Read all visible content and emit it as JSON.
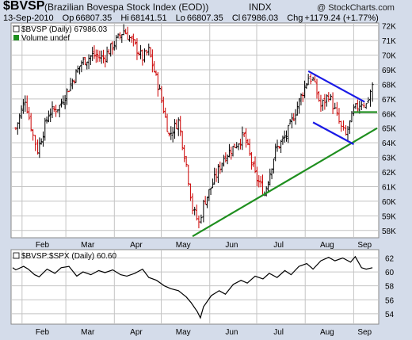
{
  "header": {
    "symbol": "$BVSP",
    "full_name": "(Brazilian Bovespa Stock Index (EOD))",
    "exchange": "INDX",
    "watermark": "@ StockCharts.com",
    "date": "13-Sep-2010",
    "open_label": "Op",
    "open": "66807.35",
    "high_label": "Hi",
    "high": "68141.51",
    "low_label": "Lo",
    "low": "66807.35",
    "close_label": "Cl",
    "close": "67986.03",
    "change_label": "Chg",
    "change": "+1179.24 (+1.77%)"
  },
  "colors": {
    "up": "#000000",
    "down": "#cc0000",
    "trend_green": "#1f8f1f",
    "channel_blue": "#1a1ae6",
    "grid": "#c4c4c4",
    "background": "#d4dcea",
    "panel": "#ffffff"
  },
  "chart_data": [
    {
      "type": "ohlc",
      "legend": [
        "$BVSP (Daily) 67986.03",
        "Volume undef"
      ],
      "y_ticks": [
        "58K",
        "59K",
        "60K",
        "61K",
        "62K",
        "63K",
        "64K",
        "65K",
        "66K",
        "67K",
        "68K",
        "69K",
        "70K",
        "71K",
        "72K"
      ],
      "x_ticks": [
        "Feb",
        "Mar",
        "Apr",
        "May",
        "Jun",
        "Jul",
        "Aug",
        "Sep"
      ],
      "ylim": [
        57500,
        72200
      ],
      "grid": true,
      "closes_approx": [
        [
          "2010-01-28",
          65000
        ],
        [
          "2010-02-03",
          67000
        ],
        [
          "2010-02-08",
          64500
        ],
        [
          "2010-02-11",
          63500
        ],
        [
          "2010-02-18",
          66000
        ],
        [
          "2010-02-25",
          66500
        ],
        [
          "2010-03-04",
          68000
        ],
        [
          "2010-03-11",
          69500
        ],
        [
          "2010-03-18",
          70000
        ],
        [
          "2010-03-25",
          69800
        ],
        [
          "2010-04-01",
          70800
        ],
        [
          "2010-04-07",
          71700
        ],
        [
          "2010-04-12",
          71000
        ],
        [
          "2010-04-19",
          69800
        ],
        [
          "2010-04-23",
          70300
        ],
        [
          "2010-04-30",
          67500
        ],
        [
          "2010-05-06",
          64500
        ],
        [
          "2010-05-12",
          65500
        ],
        [
          "2010-05-17",
          62500
        ],
        [
          "2010-05-21",
          59500
        ],
        [
          "2010-05-25",
          58500
        ],
        [
          "2010-05-28",
          59800
        ],
        [
          "2010-06-04",
          61500
        ],
        [
          "2010-06-10",
          63000
        ],
        [
          "2010-06-17",
          63800
        ],
        [
          "2010-06-23",
          64500
        ],
        [
          "2010-06-30",
          61800
        ],
        [
          "2010-07-06",
          60500
        ],
        [
          "2010-07-13",
          63500
        ],
        [
          "2010-07-20",
          64500
        ],
        [
          "2010-07-27",
          66500
        ],
        [
          "2010-08-03",
          68500
        ],
        [
          "2010-08-06",
          68300
        ],
        [
          "2010-08-11",
          66500
        ],
        [
          "2010-08-16",
          67300
        ],
        [
          "2010-08-20",
          66200
        ],
        [
          "2010-08-24",
          65000
        ],
        [
          "2010-08-27",
          64500
        ],
        [
          "2010-09-01",
          66200
        ],
        [
          "2010-09-06",
          66800
        ],
        [
          "2010-09-09",
          66600
        ],
        [
          "2010-09-13",
          67986
        ]
      ],
      "trendlines": [
        {
          "name": "rising-support",
          "color": "green",
          "from": [
            "2010-05-21",
            57600
          ],
          "to": [
            "2010-09-16",
            65000
          ]
        },
        {
          "name": "horizontal-support",
          "color": "green",
          "from": [
            "2010-09-01",
            66100
          ],
          "to": [
            "2010-09-16",
            66100
          ]
        },
        {
          "name": "channel-upper",
          "color": "blue",
          "from": [
            "2010-08-03",
            68900
          ],
          "to": [
            "2010-09-08",
            66800
          ]
        },
        {
          "name": "channel-lower",
          "color": "blue",
          "from": [
            "2010-08-06",
            65400
          ],
          "to": [
            "2010-09-01",
            63900
          ]
        }
      ]
    },
    {
      "type": "line",
      "legend": "$BVSP:$SPX (Daily) 60.60",
      "y_ticks": [
        "54",
        "56",
        "58",
        "60",
        "62"
      ],
      "x_ticks": [
        "Feb",
        "Mar",
        "Apr",
        "May",
        "Jun",
        "Jul",
        "Aug",
        "Sep"
      ],
      "ylim": [
        52.5,
        63.2
      ],
      "grid": true,
      "series": [
        {
          "values_approx": [
            [
              "2010-01-26",
              60.6
            ],
            [
              "2010-01-28",
              60.3
            ],
            [
              "2010-02-02",
              60.8
            ],
            [
              "2010-02-05",
              60.4
            ],
            [
              "2010-02-09",
              59.6
            ],
            [
              "2010-02-12",
              59.3
            ],
            [
              "2010-02-17",
              60.4
            ],
            [
              "2010-02-22",
              59.8
            ],
            [
              "2010-02-26",
              60.6
            ],
            [
              "2010-03-03",
              60.8
            ],
            [
              "2010-03-08",
              59.4
            ],
            [
              "2010-03-12",
              60.0
            ],
            [
              "2010-03-17",
              59.6
            ],
            [
              "2010-03-22",
              60.2
            ],
            [
              "2010-03-26",
              59.9
            ],
            [
              "2010-03-31",
              60.3
            ],
            [
              "2010-04-05",
              59.6
            ],
            [
              "2010-04-09",
              59.4
            ],
            [
              "2010-04-14",
              59.8
            ],
            [
              "2010-04-19",
              60.4
            ],
            [
              "2010-04-23",
              59.2
            ],
            [
              "2010-04-28",
              58.8
            ],
            [
              "2010-05-03",
              58.0
            ],
            [
              "2010-05-07",
              57.6
            ],
            [
              "2010-05-12",
              57.3
            ],
            [
              "2010-05-17",
              56.4
            ],
            [
              "2010-05-20",
              55.6
            ],
            [
              "2010-05-24",
              54.3
            ],
            [
              "2010-05-26",
              53.4
            ],
            [
              "2010-05-28",
              55.0
            ],
            [
              "2010-06-02",
              56.6
            ],
            [
              "2010-06-07",
              57.3
            ],
            [
              "2010-06-11",
              56.8
            ],
            [
              "2010-06-16",
              58.2
            ],
            [
              "2010-06-21",
              58.8
            ],
            [
              "2010-06-25",
              58.4
            ],
            [
              "2010-06-30",
              59.4
            ],
            [
              "2010-07-05",
              59.0
            ],
            [
              "2010-07-09",
              59.8
            ],
            [
              "2010-07-14",
              59.2
            ],
            [
              "2010-07-19",
              60.2
            ],
            [
              "2010-07-23",
              59.6
            ],
            [
              "2010-07-28",
              60.8
            ],
            [
              "2010-08-02",
              61.2
            ],
            [
              "2010-08-06",
              60.4
            ],
            [
              "2010-08-11",
              61.6
            ],
            [
              "2010-08-16",
              62.1
            ],
            [
              "2010-08-20",
              61.6
            ],
            [
              "2010-08-25",
              62.0
            ],
            [
              "2010-08-30",
              61.4
            ],
            [
              "2010-09-02",
              62.2
            ],
            [
              "2010-09-06",
              60.6
            ],
            [
              "2010-09-09",
              60.4
            ],
            [
              "2010-09-13",
              60.6
            ]
          ]
        }
      ]
    }
  ]
}
